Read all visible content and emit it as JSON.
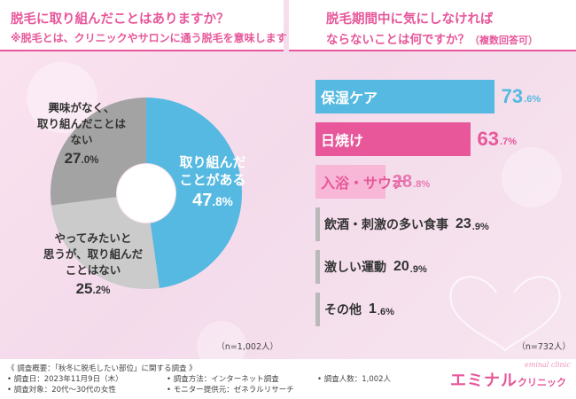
{
  "left": {
    "title": "脱毛に取り組んだことはありますか？",
    "note": "※脱毛とは、クリニックやサロンに通う脱毛を意味します",
    "sample": "（n=1,002人）"
  },
  "right": {
    "title_line1": "脱毛期間中に気にしなければ",
    "title_line2": "ならないことは何ですか？",
    "title_note": "（複数回答可）",
    "sample": "（n=732人）"
  },
  "footer": {
    "overview": "《 調査概要：「秋冬に脱毛したい部位」に関する調査 》",
    "date": "• 調査日：2023年11月9日（木）",
    "target": "• 調査対象：20代〜30代の女性",
    "method": "• 調査方法：インターネット調査",
    "provider": "• モニター提供元：ゼネラルリサーチ",
    "count": "• 調査人数：1,002人",
    "brand_main": "エミナル",
    "brand_sub": "クリニック",
    "brand_script": "eminal clinic"
  },
  "colors": {
    "pink": "#e7579a",
    "blue": "#56b9e1",
    "dark_gray": "#a3a3a3",
    "light_gray": "#cbcbcb",
    "light_pink": "#f8b7d6"
  },
  "chart_data": [
    {
      "type": "pie",
      "title": "脱毛に取り組んだことはありますか？",
      "slices": [
        {
          "label_lines": [
            "取り組んだ",
            "ことがある"
          ],
          "value": 47.8,
          "display_int": "47",
          "display_dec": ".8",
          "unit": "%",
          "color": "#56b9e1",
          "text_color": "#ffffff"
        },
        {
          "label_lines": [
            "やってみたいと",
            "思うが、取り組んだ",
            "ことはない"
          ],
          "value": 25.2,
          "display_int": "25",
          "display_dec": ".2",
          "unit": "%",
          "color": "#cbcbcb",
          "text_color": "#333333"
        },
        {
          "label_lines": [
            "興味がなく、",
            "取り組んだことは",
            "ない"
          ],
          "value": 27.0,
          "display_int": "27",
          "display_dec": ".0",
          "unit": "%",
          "color": "#a3a3a3",
          "text_color": "#333333"
        }
      ]
    },
    {
      "type": "bar",
      "orientation": "horizontal",
      "title": "脱毛期間中に気にしなければならないことは何ですか？（複数回答可）",
      "xlim": [
        0,
        100
      ],
      "bars": [
        {
          "label": "保湿ケア",
          "value": 73.6,
          "display_int": "73",
          "display_dec": ".6",
          "unit": "%",
          "fill": "#56b9e1",
          "label_color": "#ffffff",
          "value_color": "#56b9e1"
        },
        {
          "label": "日焼け",
          "value": 63.7,
          "display_int": "63",
          "display_dec": ".7",
          "unit": "%",
          "fill": "#e7579a",
          "label_color": "#ffffff",
          "value_color": "#e7579a"
        },
        {
          "label": "入浴・サウナ",
          "value": 28.8,
          "display_int": "28",
          "display_dec": ".8",
          "unit": "%",
          "fill": "#f8b7d6",
          "label_color": "#e7579a",
          "value_color": "#e778b0"
        },
        {
          "label": "飲酒・刺激の多い食事",
          "value": 23.9,
          "display_int": "23",
          "display_dec": ".9",
          "unit": "%",
          "fill": "none",
          "label_color": "#333333",
          "value_color": "#333333"
        },
        {
          "label": "激しい運動",
          "value": 20.9,
          "display_int": "20",
          "display_dec": ".9",
          "unit": "%",
          "fill": "none",
          "label_color": "#333333",
          "value_color": "#333333"
        },
        {
          "label": "その他",
          "value": 1.6,
          "display_int": "1",
          "display_dec": ".6",
          "unit": "%",
          "fill": "none",
          "label_color": "#333333",
          "value_color": "#333333"
        }
      ]
    }
  ]
}
